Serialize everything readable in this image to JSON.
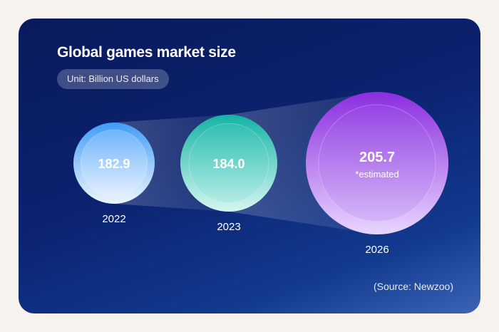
{
  "chart_data": {
    "type": "bubble",
    "title": "Global games market size",
    "subtitle": "Unit: Billion US dollars",
    "source": "(Source: Newzoo)",
    "unit": "Billion US dollars",
    "series": [
      {
        "year": "2022",
        "value": 182.9,
        "value_label": "182.9",
        "note": "",
        "colors": {
          "top": "#3f9cf7",
          "bottom": "#eef5ff",
          "inner": "#ffffff"
        }
      },
      {
        "year": "2023",
        "value": 184.0,
        "value_label": "184.0",
        "note": "",
        "colors": {
          "top": "#14b3a6",
          "bottom": "#d5f7f1",
          "inner": "#6ad9cb"
        }
      },
      {
        "year": "2026",
        "value": 205.7,
        "value_label": "205.7",
        "note": "*estimated",
        "colors": {
          "top": "#8b2de0",
          "bottom": "#e8d6ff",
          "inner": "#a56ee8"
        }
      }
    ]
  }
}
